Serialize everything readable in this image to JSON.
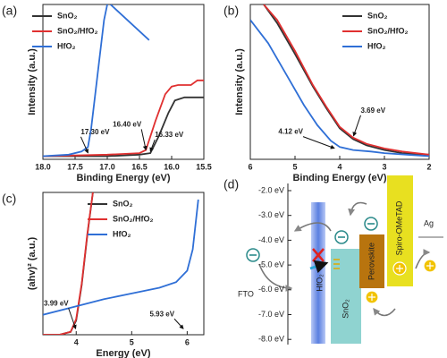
{
  "chart_data": [
    {
      "type": "line",
      "panel_label": "(a)",
      "x_label": "Binding Energy (eV)",
      "y_label": "Intensity (a.u.)",
      "xlim": [
        18.0,
        15.5
      ],
      "ylim": [
        0,
        1
      ],
      "xticks": [
        {
          "value": 18.0,
          "label": "18.0"
        },
        17.5,
        {
          "value": 17.0,
          "label": "17.0"
        },
        16.5,
        {
          "value": 16.0,
          "label": "16.0"
        },
        15.5
      ],
      "series": [
        {
          "name": "SnO₂",
          "color": "#333333",
          "x": [
            18.0,
            17.0,
            16.5,
            16.33,
            16.2,
            16.05,
            15.95,
            15.8,
            15.6,
            15.5
          ],
          "values": [
            0.02,
            0.02,
            0.03,
            0.04,
            0.15,
            0.3,
            0.38,
            0.4,
            0.4,
            0.4
          ]
        },
        {
          "name": "SnO₂/HfO₂",
          "color": "#e03030",
          "x": [
            18.0,
            17.0,
            16.5,
            16.4,
            16.25,
            16.1,
            16.0,
            15.9,
            15.7,
            15.6,
            15.5
          ],
          "values": [
            0.02,
            0.03,
            0.04,
            0.06,
            0.25,
            0.42,
            0.47,
            0.48,
            0.48,
            0.51,
            0.51
          ]
        },
        {
          "name": "HfO₂",
          "color": "#2f6fd6",
          "x": [
            18.0,
            17.6,
            17.4,
            17.3,
            17.25,
            17.15,
            17.05,
            17.0,
            16.98,
            16.95,
            16.35
          ],
          "values": [
            0.02,
            0.03,
            0.05,
            0.08,
            0.2,
            0.55,
            0.9,
            1.0,
            null,
            1.0,
            0.77
          ]
        }
      ],
      "annotations": [
        {
          "text": "17.30 eV",
          "x": 17.3,
          "y": 0.03
        },
        {
          "text": "16.40 eV",
          "x": 16.4,
          "y": 0.05
        },
        {
          "text": "16.33 eV",
          "x": 16.33,
          "y": 0.04
        }
      ]
    },
    {
      "type": "line",
      "panel_label": "(b)",
      "x_label": "Binding Energy (eV)",
      "y_label": "Intensity (a.u.)",
      "xlim": [
        6,
        2
      ],
      "ylim": [
        0,
        1
      ],
      "xticks": [
        6,
        5,
        4,
        3,
        2
      ],
      "series": [
        {
          "name": "SnO₂",
          "color": "#333333",
          "x": [
            5.7,
            5.4,
            5.0,
            4.6,
            4.3,
            4.0,
            3.7,
            3.4,
            3.0,
            2.6,
            2.0
          ],
          "values": [
            1.0,
            0.88,
            0.68,
            0.47,
            0.33,
            0.2,
            0.13,
            0.09,
            0.06,
            0.04,
            0.03
          ]
        },
        {
          "name": "SnO₂/HfO₂",
          "color": "#e03030",
          "x": [
            5.7,
            5.4,
            5.0,
            4.6,
            4.3,
            4.0,
            3.7,
            3.4,
            3.0,
            2.6,
            2.0
          ],
          "values": [
            1.0,
            0.9,
            0.7,
            0.48,
            0.34,
            0.21,
            0.14,
            0.1,
            0.07,
            0.05,
            0.03
          ]
        },
        {
          "name": "HfO₂",
          "color": "#2f6fd6",
          "x": [
            6.0,
            5.6,
            5.2,
            4.8,
            4.5,
            4.2,
            4.0,
            3.7,
            3.3,
            3.0,
            2.5,
            2.0
          ],
          "values": [
            0.9,
            0.75,
            0.55,
            0.35,
            0.22,
            0.12,
            0.08,
            0.06,
            0.05,
            0.04,
            0.03,
            0.02
          ]
        }
      ],
      "annotations": [
        {
          "text": "3.69 eV",
          "x": 3.69,
          "y": 0.14
        },
        {
          "text": "4.12 eV",
          "x": 4.12,
          "y": 0.06
        }
      ]
    },
    {
      "type": "line",
      "panel_label": "(c)",
      "x_label": "Energy (eV)",
      "y_label": "(ahv)² (a.u.)",
      "xlim": [
        3.4,
        6.3
      ],
      "ylim": [
        0,
        1
      ],
      "xticks": [
        4,
        5,
        6
      ],
      "series": [
        {
          "name": "SnO₂",
          "color": "#333333",
          "x": [
            3.4,
            3.7,
            3.9,
            4.0,
            4.1,
            4.2,
            4.3
          ],
          "values": [
            0,
            0,
            0.02,
            0.1,
            0.35,
            0.7,
            1.0
          ]
        },
        {
          "name": "SnO₂/HfO₂",
          "color": "#e03030",
          "x": [
            3.4,
            3.7,
            3.9,
            4.0,
            4.1,
            4.2,
            4.3
          ],
          "values": [
            0,
            0,
            0.02,
            0.11,
            0.36,
            0.71,
            1.0
          ]
        },
        {
          "name": "HfO₂",
          "color": "#2f6fd6",
          "x": [
            3.4,
            4.0,
            4.5,
            5.0,
            5.5,
            5.8,
            6.0,
            6.1,
            6.2
          ],
          "values": [
            0.14,
            0.2,
            0.25,
            0.29,
            0.33,
            0.37,
            0.45,
            0.6,
            0.95
          ]
        }
      ],
      "annotations": [
        {
          "text": "3.99 eV",
          "x": 3.99,
          "y": 0.03
        },
        {
          "text": "5.93 eV",
          "x": 5.93,
          "y": 0.03
        }
      ]
    }
  ],
  "diagram": {
    "panel_label": "(d)",
    "energy_levels": [
      "-2.0 eV",
      "-3.0 eV",
      "-4.0 eV",
      "-5.0 eV",
      "-6.0 eV",
      "-7.0 eV",
      "-8.0 eV"
    ],
    "layers": {
      "fto": "FTO",
      "hfo2": "HfO₂",
      "sno2": "SnO₂",
      "perovskite": "Perovskite",
      "spiro": "Spiro-OMeTAD",
      "ag": "Ag"
    }
  }
}
